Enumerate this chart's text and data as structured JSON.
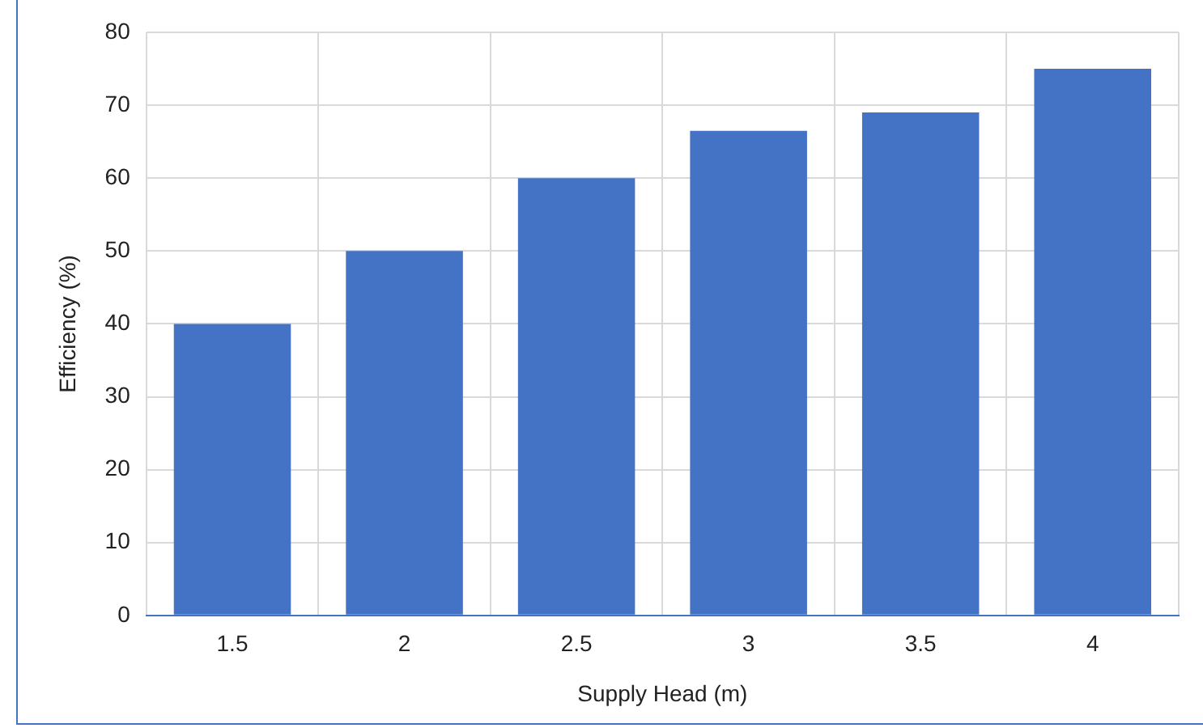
{
  "chart_data": {
    "type": "bar",
    "xlabel": "Supply Head (m)",
    "ylabel": "Efficiency (%)",
    "categories": [
      "1.5",
      "2",
      "2.5",
      "3",
      "3.5",
      "4"
    ],
    "values": [
      40,
      50,
      60,
      66.5,
      69,
      75
    ],
    "color": "#4472c4",
    "ylim": [
      0,
      80
    ],
    "yticks": [
      0,
      10,
      20,
      30,
      40,
      50,
      60,
      70,
      80
    ],
    "grid": true
  }
}
